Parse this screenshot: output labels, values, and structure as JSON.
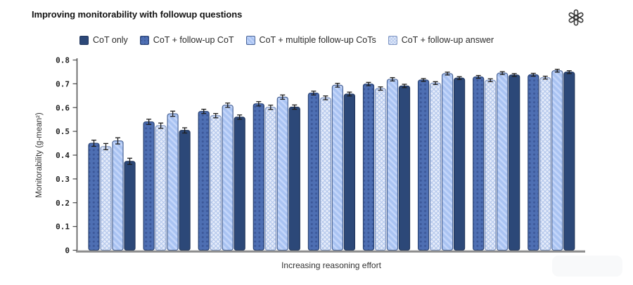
{
  "header": {
    "title": "Improving monitorability with followup questions"
  },
  "chart_data": {
    "type": "bar",
    "title": "Improving monitorability with followup questions",
    "xlabel": "Increasing reasoning effort",
    "ylabel": "Monitorability (g-mean²)",
    "ylim": [
      0,
      0.8
    ],
    "yticks": [
      0,
      0.1,
      0.2,
      0.3,
      0.4,
      0.5,
      0.6,
      0.7,
      0.8
    ],
    "x_tick_labels": [],
    "n_groups": 9,
    "grid": false,
    "legend_position": "top",
    "error_by_group": [
      0.013,
      0.011,
      0.009,
      0.009,
      0.008,
      0.007,
      0.006,
      0.006,
      0.006
    ],
    "series": [
      {
        "name": "CoT only",
        "pattern": "solid",
        "fill": "#2c4878",
        "accent": "#2c4878",
        "edge": "#22375d",
        "values": [
          0.374,
          0.504,
          0.56,
          0.602,
          0.657,
          0.691,
          0.724,
          0.737,
          0.749
        ]
      },
      {
        "name": "CoT + follow-up CoT",
        "pattern": "dots",
        "fill": "#4e6fb3",
        "accent": "#3b5798",
        "edge": "#2a4373",
        "values": [
          0.45,
          0.54,
          0.584,
          0.616,
          0.661,
          0.699,
          0.716,
          0.729,
          0.738
        ]
      },
      {
        "name": "CoT + multiple follow-up CoTs",
        "pattern": "diagonal",
        "fill": "#a9c3f2",
        "accent": "#c4d6fa",
        "edge": "#4a6496",
        "values": [
          0.46,
          0.574,
          0.61,
          0.644,
          0.694,
          0.719,
          0.743,
          0.745,
          0.755
        ]
      },
      {
        "name": "CoT + follow-up answer",
        "pattern": "crosshatch",
        "fill": "#e7edfa",
        "accent": "#b3c7ec",
        "edge": "#8096c2",
        "values": [
          0.436,
          0.524,
          0.566,
          0.601,
          0.641,
          0.68,
          0.703,
          0.715,
          0.726
        ]
      }
    ],
    "bar_plot_order": [
      1,
      3,
      2,
      0
    ],
    "axis_colors": {
      "spine": "#4a4a4a",
      "baseline": "#8c8c8c",
      "error_bar": "#1c1c1c"
    }
  }
}
